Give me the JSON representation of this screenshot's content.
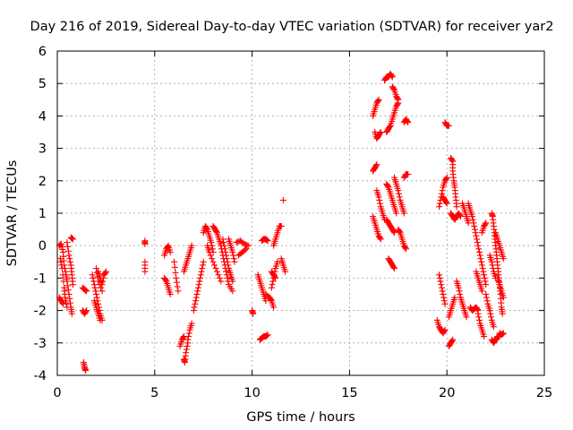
{
  "chart_data": {
    "type": "scatter",
    "title": "Day 216 of 2019, Sidereal Day-to-day VTEC variation (SDTVAR) for receiver yar2",
    "xlabel": "GPS time / hours",
    "ylabel": "SDTVAR / TECUs",
    "xlim": [
      0,
      25
    ],
    "ylim": [
      -4,
      6
    ],
    "xticks": [
      0,
      5,
      10,
      15,
      20,
      25
    ],
    "yticks": [
      -4,
      -3,
      -2,
      -1,
      0,
      1,
      2,
      3,
      4,
      5,
      6
    ],
    "grid": true,
    "marker": "+",
    "series_color": "#ff0000",
    "segments": [
      [
        [
          0.1,
          0.0
        ],
        [
          0.2,
          0.05
        ],
        [
          0.3,
          -0.2
        ],
        [
          0.35,
          -0.6
        ],
        [
          0.45,
          -0.9
        ],
        [
          0.5,
          -1.1
        ],
        [
          0.6,
          -1.5
        ],
        [
          0.7,
          -1.9
        ],
        [
          0.75,
          -2.1
        ]
      ],
      [
        [
          0.15,
          -0.4
        ],
        [
          0.25,
          -0.7
        ],
        [
          0.35,
          -1.3
        ],
        [
          0.4,
          -1.6
        ],
        [
          0.5,
          -1.9
        ]
      ],
      [
        [
          0.1,
          -1.6
        ],
        [
          0.2,
          -1.7
        ],
        [
          0.3,
          -1.8
        ]
      ],
      [
        [
          0.5,
          0.1
        ],
        [
          0.6,
          -0.3
        ],
        [
          0.7,
          -0.6
        ],
        [
          0.75,
          -0.9
        ],
        [
          0.8,
          -1.2
        ]
      ],
      [
        [
          0.7,
          0.25
        ],
        [
          0.8,
          0.2
        ]
      ],
      [
        [
          1.3,
          -1.3
        ],
        [
          1.4,
          -1.35
        ],
        [
          1.5,
          -1.4
        ]
      ],
      [
        [
          1.3,
          -2.0
        ],
        [
          1.4,
          -2.1
        ],
        [
          1.5,
          -2.0
        ]
      ],
      [
        [
          1.35,
          -3.6
        ],
        [
          1.4,
          -3.75
        ],
        [
          1.45,
          -3.85
        ]
      ],
      [
        [
          1.8,
          -0.9
        ],
        [
          1.9,
          -1.2
        ],
        [
          2.0,
          -1.5
        ],
        [
          2.1,
          -1.8
        ],
        [
          2.2,
          -2.1
        ],
        [
          2.3,
          -2.3
        ]
      ],
      [
        [
          1.9,
          -1.7
        ],
        [
          2.0,
          -1.9
        ],
        [
          2.1,
          -2.1
        ],
        [
          2.2,
          -2.3
        ]
      ],
      [
        [
          2.1,
          -0.8
        ],
        [
          2.2,
          -1.0
        ],
        [
          2.3,
          -1.2
        ],
        [
          2.4,
          -0.9
        ],
        [
          2.5,
          -0.8
        ]
      ],
      [
        [
          2.0,
          -0.7
        ],
        [
          2.1,
          -1.1
        ],
        [
          2.3,
          -1.4
        ]
      ],
      [
        [
          4.5,
          0.15
        ],
        [
          4.5,
          0.05
        ]
      ],
      [
        [
          4.5,
          -0.5
        ],
        [
          4.5,
          -0.8
        ]
      ],
      [
        [
          5.5,
          -0.3
        ],
        [
          5.6,
          -0.1
        ],
        [
          5.7,
          0.0
        ],
        [
          5.8,
          -0.2
        ]
      ],
      [
        [
          5.5,
          -1.0
        ],
        [
          5.6,
          -1.1
        ],
        [
          5.7,
          -1.3
        ],
        [
          5.8,
          -1.5
        ]
      ],
      [
        [
          6.0,
          -0.5
        ],
        [
          6.1,
          -1.0
        ],
        [
          6.2,
          -1.4
        ]
      ],
      [
        [
          6.3,
          -3.1
        ],
        [
          6.4,
          -2.9
        ],
        [
          6.5,
          -2.8
        ]
      ],
      [
        [
          6.5,
          -3.5
        ],
        [
          6.55,
          -3.6
        ],
        [
          6.6,
          -3.3
        ],
        [
          6.7,
          -3.0
        ]
      ],
      [
        [
          6.7,
          -2.9
        ],
        [
          6.8,
          -2.6
        ],
        [
          6.9,
          -2.4
        ]
      ],
      [
        [
          6.5,
          -0.8
        ],
        [
          6.6,
          -0.6
        ],
        [
          6.7,
          -0.4
        ],
        [
          6.8,
          -0.2
        ],
        [
          6.9,
          0.0
        ]
      ],
      [
        [
          7.0,
          -2.0
        ],
        [
          7.1,
          -1.7
        ],
        [
          7.2,
          -1.4
        ],
        [
          7.3,
          -1.1
        ],
        [
          7.4,
          -0.8
        ],
        [
          7.5,
          -0.5
        ]
      ],
      [
        [
          7.5,
          0.4
        ],
        [
          7.6,
          0.6
        ],
        [
          7.7,
          0.5
        ],
        [
          7.8,
          0.3
        ],
        [
          7.9,
          0.1
        ],
        [
          8.0,
          -0.2
        ]
      ],
      [
        [
          7.7,
          0.0
        ],
        [
          7.8,
          -0.2
        ],
        [
          8.0,
          -0.5
        ],
        [
          8.2,
          -0.8
        ],
        [
          8.4,
          -1.1
        ]
      ],
      [
        [
          8.0,
          0.6
        ],
        [
          8.1,
          0.5
        ],
        [
          8.2,
          0.4
        ],
        [
          8.3,
          0.2
        ],
        [
          8.4,
          0.0
        ],
        [
          8.5,
          -0.3
        ],
        [
          8.6,
          -0.6
        ],
        [
          8.7,
          -0.9
        ],
        [
          8.8,
          -1.2
        ],
        [
          9.0,
          -1.4
        ]
      ],
      [
        [
          8.5,
          0.2
        ],
        [
          8.6,
          -0.1
        ],
        [
          8.7,
          -0.4
        ],
        [
          8.8,
          -0.7
        ],
        [
          8.9,
          -0.9
        ],
        [
          9.0,
          -1.1
        ]
      ],
      [
        [
          8.8,
          0.2
        ],
        [
          8.9,
          0.0
        ],
        [
          9.0,
          -0.2
        ],
        [
          9.1,
          -0.5
        ]
      ],
      [
        [
          9.2,
          0.1
        ],
        [
          9.4,
          0.15
        ],
        [
          9.6,
          0.05
        ],
        [
          9.8,
          0.0
        ]
      ],
      [
        [
          9.3,
          -0.3
        ],
        [
          9.5,
          -0.2
        ],
        [
          9.7,
          -0.1
        ]
      ],
      [
        [
          10.0,
          -2.0
        ],
        [
          10.05,
          -2.1
        ]
      ],
      [
        [
          10.3,
          -0.9
        ],
        [
          10.4,
          -1.1
        ],
        [
          10.5,
          -1.3
        ],
        [
          10.6,
          -1.5
        ],
        [
          10.7,
          -1.7
        ]
      ],
      [
        [
          10.4,
          -2.9
        ],
        [
          10.5,
          -2.85
        ],
        [
          10.6,
          -2.8
        ],
        [
          10.7,
          -2.8
        ],
        [
          10.8,
          -2.75
        ]
      ],
      [
        [
          10.5,
          0.15
        ],
        [
          10.6,
          0.2
        ],
        [
          10.7,
          0.2
        ],
        [
          10.8,
          0.15
        ]
      ],
      [
        [
          10.7,
          -1.5
        ],
        [
          10.9,
          -1.6
        ],
        [
          11.0,
          -1.7
        ],
        [
          11.1,
          -1.9
        ]
      ],
      [
        [
          11.0,
          -0.8
        ],
        [
          11.1,
          -0.9
        ],
        [
          11.2,
          -1.0
        ]
      ],
      [
        [
          11.1,
          0.0
        ],
        [
          11.2,
          0.2
        ],
        [
          11.3,
          0.4
        ],
        [
          11.4,
          0.6
        ],
        [
          11.5,
          0.6
        ]
      ],
      [
        [
          11.0,
          -1.3
        ],
        [
          11.1,
          -1.0
        ],
        [
          11.2,
          -0.7
        ],
        [
          11.3,
          -0.5
        ]
      ],
      [
        [
          11.5,
          -0.4
        ],
        [
          11.6,
          -0.6
        ],
        [
          11.7,
          -0.8
        ]
      ],
      [
        [
          11.6,
          1.4
        ]
      ],
      [
        [
          16.2,
          4.0
        ],
        [
          16.3,
          4.2
        ],
        [
          16.4,
          4.4
        ],
        [
          16.5,
          4.5
        ]
      ],
      [
        [
          16.3,
          3.5
        ],
        [
          16.4,
          3.3
        ],
        [
          16.5,
          3.4
        ],
        [
          16.6,
          3.5
        ]
      ],
      [
        [
          16.4,
          1.7
        ],
        [
          16.5,
          1.5
        ],
        [
          16.6,
          1.2
        ],
        [
          16.7,
          1.0
        ],
        [
          16.8,
          0.8
        ]
      ],
      [
        [
          16.2,
          0.9
        ],
        [
          16.3,
          0.7
        ],
        [
          16.4,
          0.5
        ],
        [
          16.5,
          0.3
        ],
        [
          16.6,
          0.2
        ]
      ],
      [
        [
          16.2,
          2.3
        ],
        [
          16.3,
          2.4
        ],
        [
          16.4,
          2.5
        ]
      ],
      [
        [
          16.8,
          5.1
        ],
        [
          16.9,
          5.2
        ],
        [
          17.0,
          5.2
        ],
        [
          17.1,
          5.3
        ],
        [
          17.2,
          5.2
        ]
      ],
      [
        [
          16.9,
          3.5
        ],
        [
          17.0,
          3.6
        ],
        [
          17.1,
          3.7
        ],
        [
          17.2,
          3.9
        ],
        [
          17.3,
          4.1
        ],
        [
          17.4,
          4.3
        ],
        [
          17.5,
          4.4
        ]
      ],
      [
        [
          16.9,
          0.8
        ],
        [
          17.0,
          0.7
        ],
        [
          17.1,
          0.6
        ],
        [
          17.2,
          0.5
        ],
        [
          17.3,
          0.4
        ]
      ],
      [
        [
          16.9,
          1.9
        ],
        [
          17.0,
          1.8
        ],
        [
          17.1,
          1.6
        ],
        [
          17.2,
          1.4
        ],
        [
          17.3,
          1.2
        ],
        [
          17.4,
          1.0
        ]
      ],
      [
        [
          17.0,
          -0.4
        ],
        [
          17.1,
          -0.5
        ],
        [
          17.2,
          -0.6
        ],
        [
          17.3,
          -0.7
        ]
      ],
      [
        [
          17.3,
          2.1
        ],
        [
          17.4,
          1.9
        ],
        [
          17.5,
          1.7
        ],
        [
          17.6,
          1.4
        ],
        [
          17.7,
          1.2
        ],
        [
          17.8,
          1.0
        ]
      ],
      [
        [
          17.2,
          4.9
        ],
        [
          17.3,
          4.8
        ],
        [
          17.4,
          4.6
        ],
        [
          17.5,
          4.5
        ]
      ],
      [
        [
          17.5,
          0.5
        ],
        [
          17.6,
          0.4
        ],
        [
          17.7,
          0.2
        ],
        [
          17.8,
          0.0
        ],
        [
          17.9,
          -0.1
        ]
      ],
      [
        [
          17.8,
          3.8
        ],
        [
          17.9,
          3.9
        ],
        [
          18.0,
          3.8
        ]
      ],
      [
        [
          17.8,
          2.1
        ],
        [
          17.9,
          2.2
        ],
        [
          18.0,
          2.2
        ]
      ],
      [
        [
          19.6,
          -0.9
        ],
        [
          19.7,
          -1.2
        ],
        [
          19.8,
          -1.5
        ],
        [
          19.9,
          -1.8
        ]
      ],
      [
        [
          19.5,
          -2.3
        ],
        [
          19.6,
          -2.5
        ],
        [
          19.7,
          -2.6
        ],
        [
          19.8,
          -2.7
        ],
        [
          19.9,
          -2.6
        ]
      ],
      [
        [
          19.6,
          1.2
        ],
        [
          19.7,
          1.5
        ],
        [
          19.8,
          1.8
        ],
        [
          19.9,
          2.0
        ],
        [
          20.0,
          2.1
        ]
      ],
      [
        [
          19.8,
          1.5
        ],
        [
          19.9,
          1.4
        ],
        [
          20.0,
          1.3
        ]
      ],
      [
        [
          19.9,
          3.8
        ],
        [
          20.0,
          3.7
        ],
        [
          20.1,
          3.7
        ]
      ],
      [
        [
          20.1,
          -3.1
        ],
        [
          20.2,
          -3.0
        ],
        [
          20.3,
          -2.9
        ]
      ],
      [
        [
          20.1,
          -2.2
        ],
        [
          20.2,
          -2.0
        ],
        [
          20.3,
          -1.8
        ],
        [
          20.4,
          -1.6
        ]
      ],
      [
        [
          20.2,
          2.7
        ],
        [
          20.3,
          2.6
        ],
        [
          20.3,
          2.3
        ],
        [
          20.35,
          2.0
        ],
        [
          20.4,
          1.8
        ],
        [
          20.45,
          1.5
        ],
        [
          20.5,
          1.2
        ]
      ],
      [
        [
          20.2,
          1.0
        ],
        [
          20.3,
          0.9
        ],
        [
          20.4,
          0.8
        ],
        [
          20.5,
          0.9
        ],
        [
          20.6,
          1.0
        ],
        [
          20.7,
          0.9
        ]
      ],
      [
        [
          20.5,
          -1.1
        ],
        [
          20.6,
          -1.3
        ],
        [
          20.7,
          -1.6
        ],
        [
          20.8,
          -1.8
        ],
        [
          20.9,
          -2.0
        ],
        [
          21.0,
          -2.2
        ]
      ],
      [
        [
          20.8,
          1.3
        ],
        [
          20.9,
          1.1
        ],
        [
          21.0,
          0.9
        ],
        [
          21.1,
          0.7
        ]
      ],
      [
        [
          21.1,
          1.3
        ],
        [
          21.2,
          1.1
        ],
        [
          21.3,
          0.9
        ],
        [
          21.4,
          0.6
        ],
        [
          21.5,
          0.3
        ],
        [
          21.6,
          0.0
        ],
        [
          21.7,
          -0.3
        ],
        [
          21.8,
          -0.6
        ],
        [
          21.9,
          -0.9
        ],
        [
          22.0,
          -1.2
        ]
      ],
      [
        [
          21.2,
          -1.9
        ],
        [
          21.3,
          -2.0
        ],
        [
          21.4,
          -1.95
        ],
        [
          21.5,
          -1.9
        ],
        [
          21.6,
          -2.0
        ]
      ],
      [
        [
          21.5,
          -0.8
        ],
        [
          21.6,
          -1.0
        ],
        [
          21.7,
          -1.2
        ],
        [
          21.8,
          -1.4
        ]
      ],
      [
        [
          21.6,
          -2.1
        ],
        [
          21.7,
          -2.4
        ],
        [
          21.8,
          -2.6
        ],
        [
          21.9,
          -2.8
        ]
      ],
      [
        [
          21.8,
          0.4
        ],
        [
          21.9,
          0.6
        ],
        [
          22.0,
          0.7
        ]
      ],
      [
        [
          22.0,
          -1.5
        ],
        [
          22.1,
          -1.8
        ],
        [
          22.2,
          -2.0
        ],
        [
          22.3,
          -2.3
        ],
        [
          22.4,
          -2.5
        ]
      ],
      [
        [
          22.2,
          -0.3
        ],
        [
          22.3,
          -0.5
        ],
        [
          22.4,
          -0.8
        ],
        [
          22.5,
          -1.0
        ]
      ],
      [
        [
          22.3,
          1.0
        ],
        [
          22.35,
          0.9
        ],
        [
          22.4,
          0.6
        ],
        [
          22.45,
          0.3
        ],
        [
          22.5,
          0.0
        ],
        [
          22.55,
          -0.3
        ],
        [
          22.6,
          -0.6
        ],
        [
          22.65,
          -0.9
        ],
        [
          22.7,
          -1.2
        ],
        [
          22.75,
          -1.5
        ],
        [
          22.8,
          -1.9
        ],
        [
          22.85,
          -2.1
        ]
      ],
      [
        [
          22.3,
          -2.9
        ],
        [
          22.4,
          -3.0
        ],
        [
          22.5,
          -2.9
        ],
        [
          22.6,
          -2.8
        ],
        [
          22.7,
          -2.8
        ]
      ],
      [
        [
          22.5,
          0.4
        ],
        [
          22.6,
          0.2
        ],
        [
          22.7,
          0.0
        ],
        [
          22.8,
          -0.2
        ],
        [
          22.9,
          -0.4
        ]
      ],
      [
        [
          22.6,
          -1.0
        ],
        [
          22.7,
          -1.2
        ],
        [
          22.8,
          -1.4
        ],
        [
          22.9,
          -1.6
        ]
      ],
      [
        [
          22.7,
          -2.7
        ],
        [
          22.8,
          -2.75
        ],
        [
          22.9,
          -2.7
        ]
      ]
    ]
  }
}
